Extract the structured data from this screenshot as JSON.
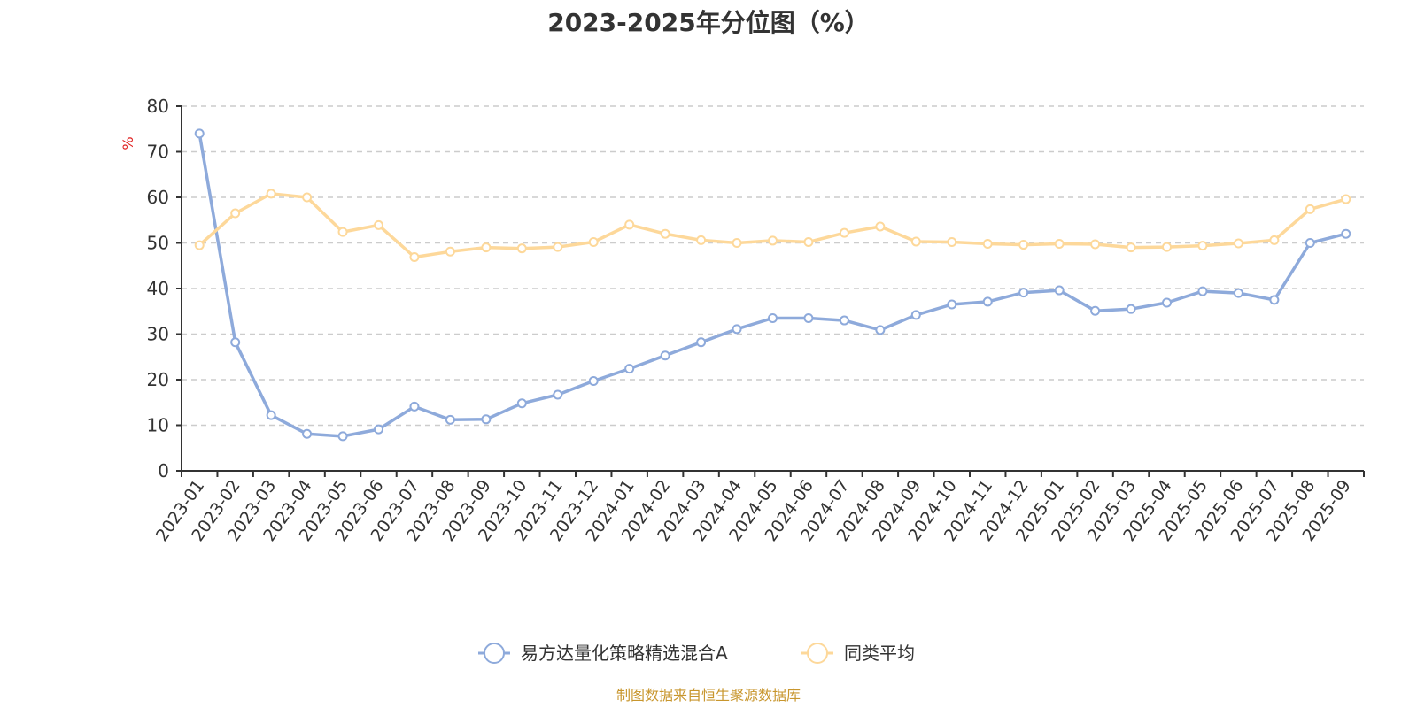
{
  "title": "2023-2025年分位图（%）",
  "source": "制图数据来自恒生聚源数据库",
  "chart_data": {
    "type": "line",
    "title": "2023-2025年分位图（%）",
    "ylabel": "%",
    "ylim": [
      0,
      80
    ],
    "yticks": [
      0,
      10,
      20,
      30,
      40,
      50,
      60,
      70,
      80
    ],
    "grid": true,
    "legend_position": "bottom",
    "categories": [
      "2023-01",
      "2023-02",
      "2023-03",
      "2023-04",
      "2023-05",
      "2023-06",
      "2023-07",
      "2023-08",
      "2023-09",
      "2023-10",
      "2023-11",
      "2023-12",
      "2024-01",
      "2024-02",
      "2024-03",
      "2024-04",
      "2024-05",
      "2024-06",
      "2024-07",
      "2024-08",
      "2024-09",
      "2024-10",
      "2024-11",
      "2024-12",
      "2025-01",
      "2025-02",
      "2025-03",
      "2025-04",
      "2025-05",
      "2025-06",
      "2025-07",
      "2025-08",
      "2025-09"
    ],
    "series": [
      {
        "name": "易方达量化策略精选混合A",
        "color": "#8eaadb",
        "values": [
          74,
          28.2,
          12.2,
          8.1,
          7.6,
          9.1,
          14.1,
          11.2,
          11.3,
          14.8,
          16.7,
          19.7,
          22.4,
          25.3,
          28.2,
          31.1,
          33.5,
          33.5,
          33,
          30.9,
          34.2,
          36.5,
          37.1,
          39.1,
          39.6,
          35.1,
          35.5,
          36.9,
          39.4,
          39,
          37.5,
          50,
          52
        ]
      },
      {
        "name": "同类平均",
        "color": "#fdd89a",
        "values": [
          49.5,
          56.5,
          60.8,
          60,
          52.4,
          53.9,
          46.9,
          48.1,
          49,
          48.8,
          49.1,
          50.2,
          54,
          52,
          50.6,
          50,
          50.5,
          50.2,
          52.2,
          53.6,
          50.3,
          50.2,
          49.8,
          49.6,
          49.8,
          49.7,
          49,
          49.1,
          49.4,
          49.9,
          50.6,
          57.4,
          59.6
        ]
      }
    ]
  }
}
